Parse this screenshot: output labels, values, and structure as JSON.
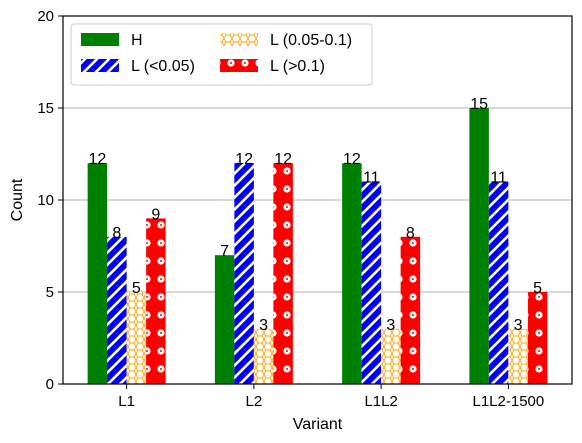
{
  "chart_data": {
    "type": "bar",
    "title": "",
    "xlabel": "Variant",
    "ylabel": "Count",
    "categories": [
      "L1",
      "L2",
      "L1L2",
      "L1L2-1500"
    ],
    "ylim": [
      0,
      20
    ],
    "yticks": [
      0,
      5,
      10,
      15,
      20
    ],
    "grid": "horizontal",
    "legend_position": "top-left",
    "series": [
      {
        "name": "H",
        "color": "#008000",
        "pattern": "solid",
        "values": [
          12,
          7,
          12,
          15
        ]
      },
      {
        "name": "L (<0.05)",
        "color": "#0000ff",
        "pattern": "diagonal-stripes",
        "values": [
          8,
          12,
          11,
          11
        ]
      },
      {
        "name": "L (0.05-0.1)",
        "color": "#ffa500",
        "pattern": "hexagons",
        "values": [
          5,
          3,
          3,
          3
        ]
      },
      {
        "name": "L (>0.1)",
        "color": "#ff0000",
        "pattern": "circles",
        "values": [
          9,
          12,
          8,
          5
        ]
      }
    ]
  }
}
